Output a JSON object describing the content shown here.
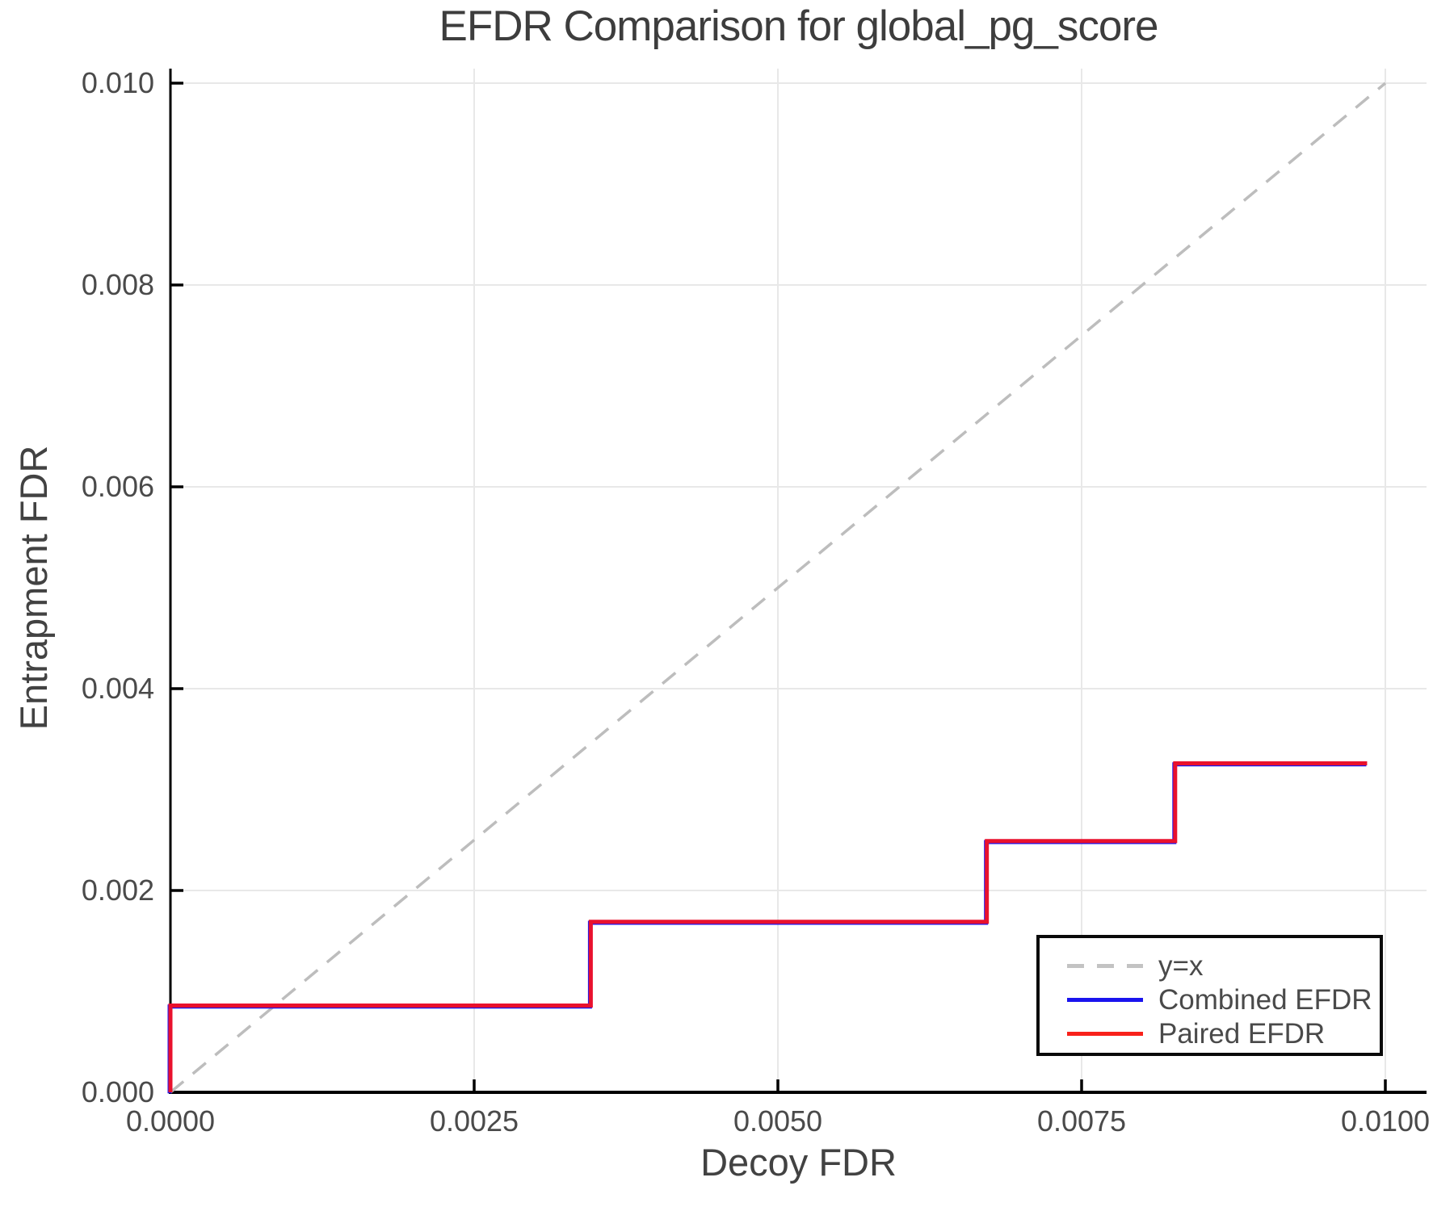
{
  "chart_data": {
    "type": "line",
    "title": "EFDR Comparison for global_pg_score",
    "xlabel": "Decoy FDR",
    "ylabel": "Entrapment FDR",
    "xlim": [
      0,
      0.01034
    ],
    "ylim": [
      0,
      0.01014
    ],
    "grid": true,
    "grid_color": "#e8e8e8",
    "axis_color": "#000000",
    "tick_label_color": "#4a4a4a",
    "xticks": {
      "values": [
        0,
        0.0025,
        0.005,
        0.0075,
        0.01
      ],
      "labels": [
        "0.0000",
        "0.0025",
        "0.0050",
        "0.0075",
        "0.0100"
      ]
    },
    "yticks": {
      "values": [
        0,
        0.002,
        0.004,
        0.006,
        0.008,
        0.01
      ],
      "labels": [
        "0.000",
        "0.002",
        "0.004",
        "0.006",
        "0.008",
        "0.010"
      ]
    },
    "legend": {
      "position": "lower-right",
      "entries": [
        {
          "label": "y=x",
          "color": "#c3c3c3",
          "dashed": true
        },
        {
          "label": "Combined EFDR",
          "color": "#1a14ee",
          "dashed": false
        },
        {
          "label": "Paired EFDR",
          "color": "#f8211a",
          "dashed": false
        }
      ]
    },
    "series": [
      {
        "name": "y=x",
        "color": "#bdbdbd",
        "style": "dashed",
        "width": 3.5,
        "points": [
          [
            0,
            0
          ],
          [
            0.01,
            0.01
          ]
        ]
      },
      {
        "name": "Combined EFDR",
        "color": "#1a14ee",
        "style": "solid",
        "width": 5,
        "points": [
          [
            0,
            0
          ],
          [
            0,
            0.00086
          ],
          [
            0.00346,
            0.00086
          ],
          [
            0.00346,
            0.00169
          ],
          [
            0.00672,
            0.00169
          ],
          [
            0.00672,
            0.00249
          ],
          [
            0.00827,
            0.00249
          ],
          [
            0.00827,
            0.00326
          ],
          [
            0.00985,
            0.00326
          ]
        ]
      },
      {
        "name": "Paired EFDR",
        "color": "#e9112d",
        "style": "solid",
        "width": 5,
        "points": [
          [
            0,
            0
          ],
          [
            0,
            0.00086
          ],
          [
            0.00346,
            0.00086
          ],
          [
            0.00346,
            0.00169
          ],
          [
            0.00672,
            0.00169
          ],
          [
            0.00672,
            0.00249
          ],
          [
            0.00827,
            0.00249
          ],
          [
            0.00827,
            0.00326
          ],
          [
            0.00985,
            0.00326
          ]
        ]
      }
    ]
  }
}
